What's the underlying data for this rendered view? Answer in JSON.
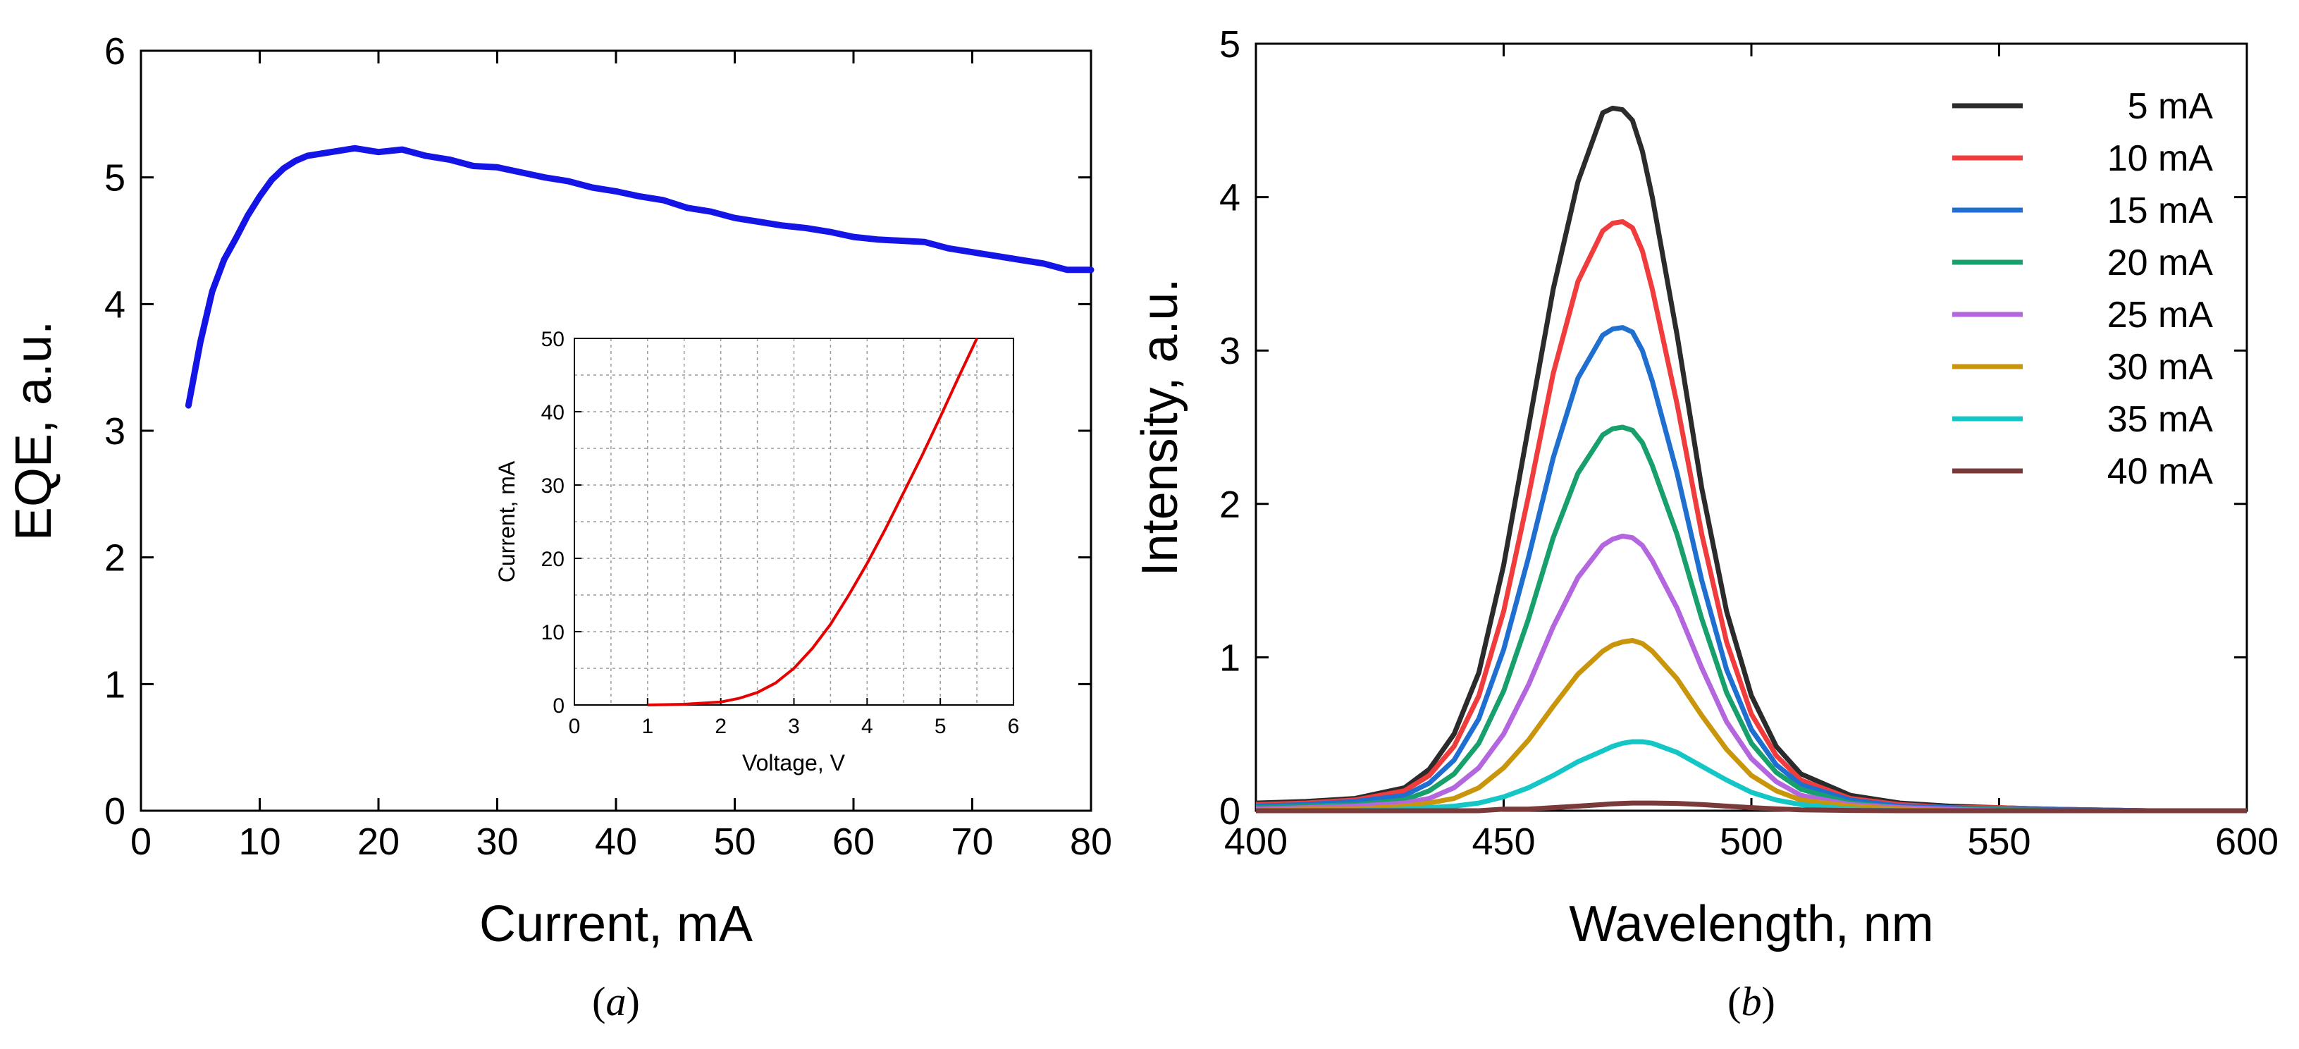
{
  "chart_data": [
    {
      "id": "a",
      "type": "line",
      "panel_label": "(a)",
      "panel_label_letter": "a",
      "xlabel": "Current, mA",
      "ylabel": "EQE, a.u.",
      "xlim": [
        0,
        80
      ],
      "ylim": [
        0,
        6
      ],
      "xticks": [
        0,
        10,
        20,
        30,
        40,
        50,
        60,
        70,
        80
      ],
      "yticks": [
        0,
        1,
        2,
        3,
        4,
        5,
        6
      ],
      "grid": false,
      "series": [
        {
          "name": "EQE",
          "color": "#1414e6",
          "x": [
            4,
            5,
            6,
            7,
            8,
            9,
            10,
            11,
            12,
            13,
            14,
            16,
            18,
            20,
            22,
            24,
            26,
            28,
            30,
            32,
            34,
            36,
            38,
            40,
            42,
            44,
            46,
            48,
            50,
            52,
            54,
            56,
            58,
            60,
            62,
            64,
            66,
            68,
            70,
            72,
            74,
            76,
            78,
            80
          ],
          "y": [
            3.2,
            3.7,
            4.1,
            4.35,
            4.52,
            4.7,
            4.85,
            4.98,
            5.07,
            5.13,
            5.17,
            5.2,
            5.23,
            5.2,
            5.22,
            5.17,
            5.14,
            5.09,
            5.08,
            5.04,
            5.0,
            4.97,
            4.92,
            4.89,
            4.85,
            4.82,
            4.76,
            4.73,
            4.68,
            4.65,
            4.62,
            4.6,
            4.57,
            4.53,
            4.51,
            4.5,
            4.49,
            4.44,
            4.41,
            4.38,
            4.35,
            4.32,
            4.27,
            4.27
          ]
        }
      ],
      "inset": {
        "type": "line",
        "xlabel": "Voltage, V",
        "ylabel": "Current, mA",
        "xlim": [
          0,
          6
        ],
        "ylim": [
          0,
          50
        ],
        "xticks": [
          0,
          1,
          2,
          3,
          4,
          5,
          6
        ],
        "yticks": [
          0,
          10,
          20,
          30,
          40,
          50
        ],
        "grid": true,
        "series": [
          {
            "name": "I-V",
            "color": "#e60000",
            "x": [
              1.0,
              1.5,
              2.0,
              2.25,
              2.5,
              2.75,
              3.0,
              3.25,
              3.5,
              3.75,
              4.0,
              4.25,
              4.5,
              4.75,
              5.0,
              5.25,
              5.5
            ],
            "y": [
              0,
              0.1,
              0.4,
              0.9,
              1.7,
              3.0,
              5.0,
              7.7,
              11.0,
              15.0,
              19.3,
              24.0,
              29.0,
              34.0,
              39.3,
              44.7,
              50.0
            ]
          }
        ]
      }
    },
    {
      "id": "b",
      "type": "line",
      "panel_label": "(b)",
      "panel_label_letter": "b",
      "xlabel": "Wavelength, nm",
      "ylabel": "Intensity, a.u.",
      "xlim": [
        400,
        600
      ],
      "ylim": [
        0,
        5
      ],
      "xticks": [
        400,
        450,
        500,
        550,
        600
      ],
      "yticks": [
        0,
        1,
        2,
        3,
        4,
        5
      ],
      "grid": false,
      "legend": "top-right",
      "wavelengths": [
        400,
        410,
        420,
        430,
        435,
        440,
        445,
        450,
        455,
        460,
        465,
        470,
        472,
        474,
        476,
        478,
        480,
        485,
        490,
        495,
        500,
        505,
        510,
        520,
        530,
        540,
        550,
        560,
        580,
        600
      ],
      "series": [
        {
          "name": "5 mA",
          "label": "5 mA",
          "color": "#2b2b2b",
          "peak_nm": 473,
          "peak": 4.58,
          "baseline": 0.05,
          "values": [
            0.05,
            0.06,
            0.08,
            0.15,
            0.27,
            0.5,
            0.9,
            1.6,
            2.5,
            3.4,
            4.1,
            4.55,
            4.58,
            4.57,
            4.5,
            4.3,
            4.0,
            3.1,
            2.1,
            1.3,
            0.75,
            0.42,
            0.24,
            0.1,
            0.05,
            0.03,
            0.02,
            0.01,
            0.0,
            0.0
          ]
        },
        {
          "name": "10 mA",
          "label": "10 mA",
          "color": "#f03c3c",
          "peak_nm": 474,
          "peak": 3.84,
          "baseline": 0.04,
          "values": [
            0.04,
            0.05,
            0.07,
            0.13,
            0.23,
            0.42,
            0.75,
            1.3,
            2.05,
            2.85,
            3.45,
            3.78,
            3.83,
            3.84,
            3.8,
            3.65,
            3.4,
            2.65,
            1.8,
            1.1,
            0.63,
            0.36,
            0.2,
            0.08,
            0.04,
            0.02,
            0.02,
            0.01,
            0.0,
            0.0
          ]
        },
        {
          "name": "15 mA",
          "label": "15 mA",
          "color": "#1f6fd1",
          "peak_nm": 474,
          "peak": 3.15,
          "baseline": 0.03,
          "values": [
            0.03,
            0.04,
            0.06,
            0.1,
            0.18,
            0.33,
            0.6,
            1.05,
            1.65,
            2.3,
            2.82,
            3.1,
            3.14,
            3.15,
            3.12,
            3.0,
            2.8,
            2.2,
            1.5,
            0.92,
            0.53,
            0.3,
            0.17,
            0.07,
            0.03,
            0.02,
            0.01,
            0.01,
            0.0,
            0.0
          ]
        },
        {
          "name": "20 mA",
          "label": "20 mA",
          "color": "#17a06b",
          "peak_nm": 475,
          "peak": 2.5,
          "baseline": 0.02,
          "values": [
            0.02,
            0.03,
            0.04,
            0.07,
            0.13,
            0.24,
            0.44,
            0.78,
            1.25,
            1.78,
            2.2,
            2.45,
            2.49,
            2.5,
            2.48,
            2.4,
            2.25,
            1.8,
            1.25,
            0.77,
            0.44,
            0.25,
            0.14,
            0.05,
            0.02,
            0.01,
            0.01,
            0.0,
            0.0,
            0.0
          ]
        },
        {
          "name": "25 mA",
          "label": "25 mA",
          "color": "#b366dd",
          "peak_nm": 475,
          "peak": 1.79,
          "baseline": 0.01,
          "values": [
            0.01,
            0.02,
            0.03,
            0.05,
            0.08,
            0.15,
            0.28,
            0.5,
            0.82,
            1.2,
            1.52,
            1.73,
            1.77,
            1.79,
            1.78,
            1.73,
            1.63,
            1.32,
            0.93,
            0.58,
            0.34,
            0.19,
            0.1,
            0.04,
            0.02,
            0.01,
            0.0,
            0.0,
            0.0,
            0.0
          ]
        },
        {
          "name": "30 mA",
          "label": "30 mA",
          "color": "#c9950a",
          "peak_nm": 476,
          "peak": 1.11,
          "baseline": 0.0,
          "values": [
            0.0,
            0.01,
            0.01,
            0.03,
            0.05,
            0.08,
            0.15,
            0.28,
            0.46,
            0.68,
            0.89,
            1.04,
            1.08,
            1.1,
            1.11,
            1.09,
            1.04,
            0.86,
            0.62,
            0.4,
            0.23,
            0.13,
            0.07,
            0.03,
            0.01,
            0.0,
            0.0,
            0.0,
            0.0,
            0.0
          ]
        },
        {
          "name": "35 mA",
          "label": "35 mA",
          "color": "#14c6c6",
          "peak_nm": 477,
          "peak": 0.45,
          "baseline": 0.0,
          "values": [
            0.0,
            0.0,
            0.0,
            0.01,
            0.02,
            0.03,
            0.05,
            0.09,
            0.15,
            0.23,
            0.32,
            0.39,
            0.42,
            0.44,
            0.45,
            0.45,
            0.44,
            0.38,
            0.29,
            0.2,
            0.12,
            0.07,
            0.04,
            0.01,
            0.0,
            0.0,
            0.0,
            0.0,
            0.0,
            0.0
          ]
        },
        {
          "name": "40 mA",
          "label": "40 mA",
          "color": "#7a3a3a",
          "peak_nm": 480,
          "peak": 0.05,
          "baseline": 0.0,
          "values": [
            0.0,
            0.0,
            0.0,
            0.0,
            0.0,
            0.0,
            0.0,
            0.01,
            0.01,
            0.02,
            0.03,
            0.04,
            0.045,
            0.048,
            0.05,
            0.05,
            0.05,
            0.048,
            0.04,
            0.03,
            0.02,
            0.012,
            0.006,
            0.002,
            0.0,
            0.0,
            0.0,
            0.0,
            0.0,
            0.0
          ]
        }
      ]
    }
  ]
}
